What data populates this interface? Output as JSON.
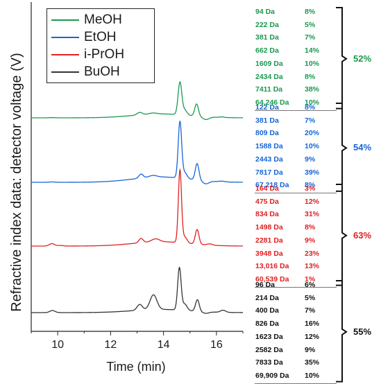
{
  "chart_data": {
    "type": "line",
    "xlabel": "Time (min)",
    "ylabel": "Refractive index data: detector voltage  (V)",
    "xlim": [
      9,
      17
    ],
    "xticks": [
      10,
      12,
      14,
      16
    ],
    "grid": false,
    "legend_position": "top-left",
    "series": [
      {
        "name": "MeOH",
        "color": "#1a9850",
        "baseline": 0.0,
        "drift": 0.07,
        "peaks": [
          [
            9.8,
            0.004,
            0.12
          ],
          [
            13.1,
            0.045,
            0.1
          ],
          [
            13.6,
            0.02,
            0.15
          ],
          [
            14.62,
            0.58,
            0.07
          ],
          [
            14.8,
            0.09,
            0.09
          ],
          [
            15.25,
            0.22,
            0.07
          ],
          [
            15.6,
            -0.05,
            0.12
          ],
          [
            16.2,
            0.01,
            0.1
          ]
        ]
      },
      {
        "name": "EtOH",
        "color": "#1565d8",
        "baseline": 0.0,
        "drift": 0.09,
        "peaks": [
          [
            9.8,
            0.006,
            0.12
          ],
          [
            13.15,
            0.07,
            0.08
          ],
          [
            13.6,
            0.03,
            0.15
          ],
          [
            14.62,
            0.95,
            0.065
          ],
          [
            14.8,
            0.1,
            0.09
          ],
          [
            15.27,
            0.28,
            0.07
          ],
          [
            15.6,
            -0.05,
            0.12
          ],
          [
            16.2,
            0.012,
            0.1
          ]
        ]
      },
      {
        "name": "i-PrOH",
        "color": "#e02020",
        "baseline": 0.0,
        "drift": 0.07,
        "peaks": [
          [
            9.78,
            0.04,
            0.1
          ],
          [
            10.1,
            0.01,
            0.1
          ],
          [
            13.15,
            0.07,
            0.08
          ],
          [
            13.7,
            0.05,
            0.15
          ],
          [
            14.62,
            1.18,
            0.06
          ],
          [
            14.8,
            0.1,
            0.09
          ],
          [
            15.27,
            0.24,
            0.07
          ],
          [
            15.75,
            0.02,
            0.1
          ]
        ]
      },
      {
        "name": "BuOH",
        "color": "#333333",
        "baseline": 0.0,
        "drift": 0.06,
        "peaks": [
          [
            9.8,
            0.04,
            0.1
          ],
          [
            13.1,
            0.11,
            0.1
          ],
          [
            13.62,
            0.28,
            0.13
          ],
          [
            14.6,
            0.8,
            0.065
          ],
          [
            14.8,
            0.12,
            0.09
          ],
          [
            15.28,
            0.22,
            0.07
          ],
          [
            15.6,
            -0.03,
            0.12
          ],
          [
            16.25,
            0.04,
            0.1
          ]
        ]
      }
    ]
  },
  "legend": [
    {
      "label": "MeOH",
      "color": "#1a9850"
    },
    {
      "label": "EtOH",
      "color": "#1565d8"
    },
    {
      "label": "i-PrOH",
      "color": "#e02020"
    },
    {
      "label": "BuOH",
      "color": "#333333"
    }
  ],
  "groups": [
    {
      "name": "MeOH",
      "color": "#1a9850",
      "total": "52%",
      "rows": [
        [
          "94 Da",
          "8%"
        ],
        [
          "222 Da",
          "5%"
        ],
        [
          "381 Da",
          "7%"
        ],
        [
          "662 Da",
          "14%"
        ],
        [
          "1609 Da",
          "10%"
        ],
        [
          "2434 Da",
          "8%"
        ],
        [
          "7411 Da",
          "38%"
        ],
        [
          "64,246 Da",
          "10%"
        ]
      ]
    },
    {
      "name": "EtOH",
      "color": "#1565d8",
      "total": "54%",
      "rows": [
        [
          "122 Da",
          "8%"
        ],
        [
          "381 Da",
          "7%"
        ],
        [
          "809 Da",
          "20%"
        ],
        [
          "1588 Da",
          "10%"
        ],
        [
          "2443 Da",
          "9%"
        ],
        [
          "7817 Da",
          "39%"
        ],
        [
          "67,218 Da",
          "8%"
        ]
      ]
    },
    {
      "name": "i-PrOH",
      "color": "#e02020",
      "total": "63%",
      "rows": [
        [
          "164 Da",
          "3%"
        ],
        [
          "475 Da",
          "12%"
        ],
        [
          "834 Da",
          "31%"
        ],
        [
          "1498 Da",
          "8%"
        ],
        [
          "2281 Da",
          "9%"
        ],
        [
          "3948 Da",
          "23%"
        ],
        [
          "13,016 Da",
          "13%"
        ],
        [
          "60,539 Da",
          "1%"
        ]
      ]
    },
    {
      "name": "BuOH",
      "color": "#111111",
      "total": "55%",
      "rows": [
        [
          "96 Da",
          "6%"
        ],
        [
          "214 Da",
          "5%"
        ],
        [
          "400 Da",
          "7%"
        ],
        [
          "826 Da",
          "16%"
        ],
        [
          "1623 Da",
          "12%"
        ],
        [
          "2582 Da",
          "9%"
        ],
        [
          "7833 Da",
          "35%"
        ],
        [
          "69,909 Da",
          "10%"
        ]
      ]
    }
  ]
}
